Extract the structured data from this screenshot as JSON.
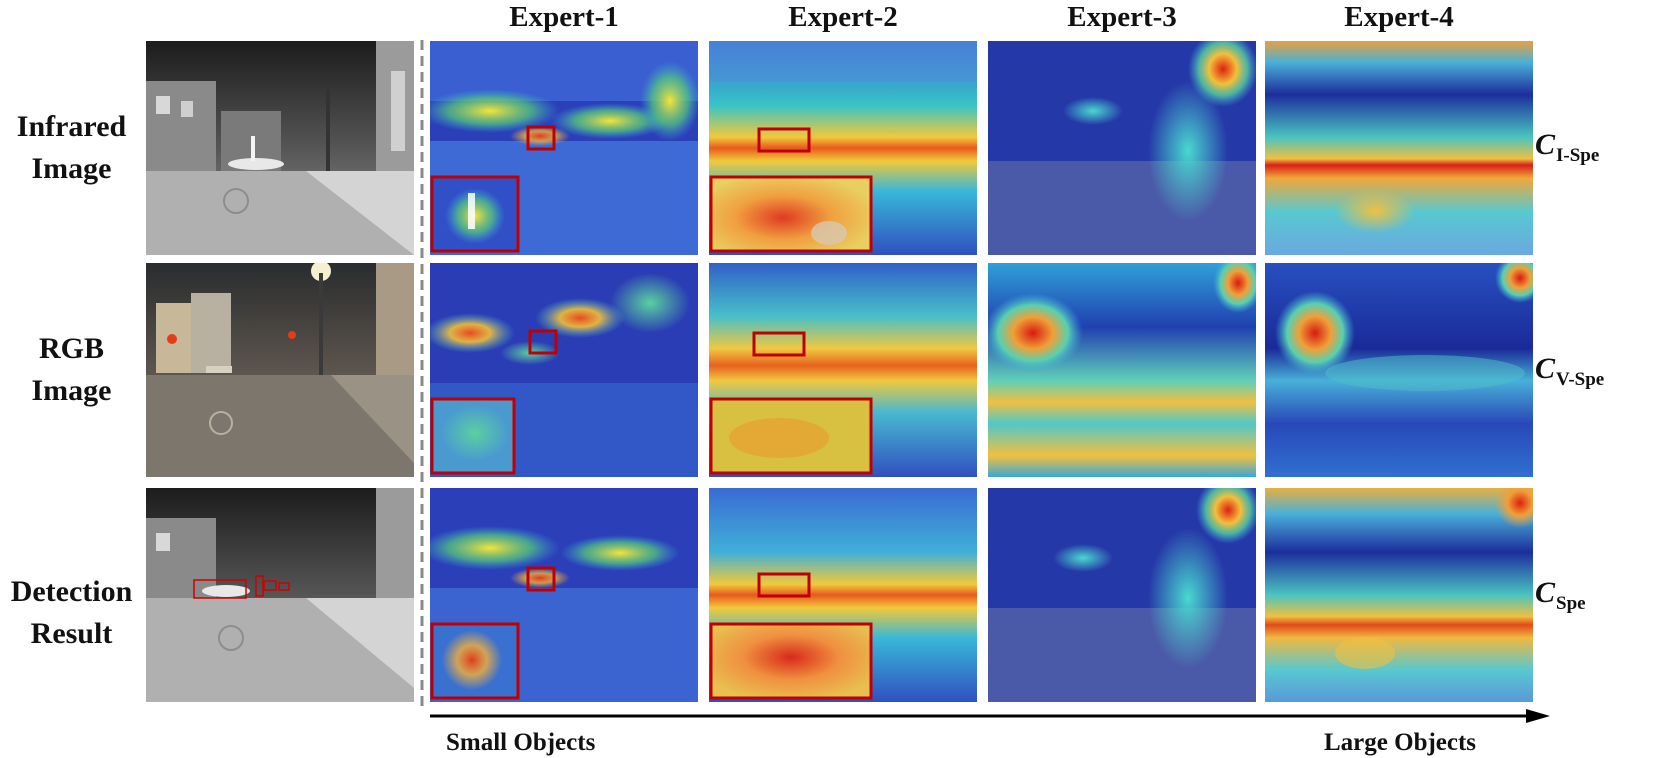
{
  "columns": [
    "Expert-1",
    "Expert-2",
    "Expert-3",
    "Expert-4"
  ],
  "rows": [
    {
      "label_line1": "Infrared",
      "label_line2": "Image",
      "context_label": "C",
      "context_sub": "I-Spe"
    },
    {
      "label_line1": "RGB",
      "label_line2": "Image",
      "context_label": "C",
      "context_sub": "V-Spe"
    },
    {
      "label_line1": "Detection",
      "label_line2": "Result",
      "context_label": "C",
      "context_sub": "Spe"
    }
  ],
  "axis": {
    "left_label": "Small Objects",
    "right_label": "Large Objects"
  },
  "colors": {
    "highlight_box": "#c00000",
    "heat_low": "#1a2a9a",
    "heat_high": "#e02010"
  }
}
